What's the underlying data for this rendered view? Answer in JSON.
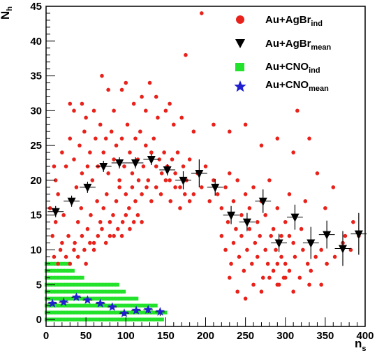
{
  "chart_data": {
    "type": "scatter",
    "title": "",
    "xlabel": {
      "main": "n",
      "sub": "s"
    },
    "ylabel": {
      "main": "N",
      "sub": "h"
    },
    "xlim": [
      0,
      400
    ],
    "ylim": [
      -1,
      45
    ],
    "xticks": [
      0,
      50,
      100,
      150,
      200,
      250,
      300,
      350,
      400
    ],
    "yticks": [
      0,
      5,
      10,
      15,
      20,
      25,
      30,
      35,
      40,
      45
    ],
    "legend_position": "top-right",
    "series": [
      {
        "name": "Au+AgBr",
        "name_sub": "ind",
        "marker": "circle",
        "color": "#e8221b",
        "points": [
          [
            195,
            44
          ],
          [
            175,
            38
          ],
          [
            70,
            35
          ],
          [
            100,
            34
          ],
          [
            130,
            34
          ],
          [
            78,
            33
          ],
          [
            95,
            33
          ],
          [
            120,
            32
          ],
          [
            138,
            32
          ],
          [
            150,
            30
          ],
          [
            155,
            31
          ],
          [
            315,
            30
          ],
          [
            30,
            31
          ],
          [
            35,
            30
          ],
          [
            45,
            31
          ],
          [
            50,
            29
          ],
          [
            60,
            30
          ],
          [
            85,
            30
          ],
          [
            110,
            31
          ],
          [
            125,
            30
          ],
          [
            140,
            29
          ],
          [
            160,
            28
          ],
          [
            170,
            29
          ],
          [
            185,
            27
          ],
          [
            210,
            28
          ],
          [
            230,
            27
          ],
          [
            250,
            28
          ],
          [
            270,
            25
          ],
          [
            290,
            26
          ],
          [
            310,
            24
          ],
          [
            330,
            26
          ],
          [
            10,
            22
          ],
          [
            12,
            20
          ],
          [
            15,
            18
          ],
          [
            20,
            24
          ],
          [
            25,
            22
          ],
          [
            30,
            26
          ],
          [
            35,
            23
          ],
          [
            38,
            19
          ],
          [
            42,
            25
          ],
          [
            45,
            21
          ],
          [
            48,
            27
          ],
          [
            52,
            22
          ],
          [
            55,
            24
          ],
          [
            58,
            20
          ],
          [
            62,
            26
          ],
          [
            65,
            22
          ],
          [
            68,
            28
          ],
          [
            72,
            24
          ],
          [
            75,
            26
          ],
          [
            78,
            21
          ],
          [
            82,
            27
          ],
          [
            85,
            23
          ],
          [
            88,
            25
          ],
          [
            92,
            20
          ],
          [
            95,
            26
          ],
          [
            98,
            22
          ],
          [
            102,
            28
          ],
          [
            105,
            24
          ],
          [
            108,
            21
          ],
          [
            112,
            26
          ],
          [
            115,
            23
          ],
          [
            118,
            27
          ],
          [
            122,
            22
          ],
          [
            125,
            25
          ],
          [
            128,
            20
          ],
          [
            132,
            24
          ],
          [
            135,
            26
          ],
          [
            138,
            22
          ],
          [
            142,
            23
          ],
          [
            145,
            21
          ],
          [
            148,
            24
          ],
          [
            152,
            22
          ],
          [
            155,
            20
          ],
          [
            158,
            23
          ],
          [
            162,
            21
          ],
          [
            165,
            24
          ],
          [
            168,
            19
          ],
          [
            172,
            22
          ],
          [
            176,
            20
          ],
          [
            180,
            23
          ],
          [
            185,
            18
          ],
          [
            190,
            21
          ],
          [
            195,
            19
          ],
          [
            200,
            22
          ],
          [
            205,
            17
          ],
          [
            210,
            20
          ],
          [
            215,
            18
          ],
          [
            220,
            16
          ],
          [
            225,
            19
          ],
          [
            230,
            21
          ],
          [
            235,
            17
          ],
          [
            240,
            20
          ],
          [
            245,
            15
          ],
          [
            250,
            18
          ],
          [
            255,
            16
          ],
          [
            260,
            19
          ],
          [
            265,
            14
          ],
          [
            270,
            17
          ],
          [
            275,
            15
          ],
          [
            280,
            20
          ],
          [
            285,
            13
          ],
          [
            290,
            16
          ],
          [
            295,
            12
          ],
          [
            300,
            14
          ],
          [
            305,
            18
          ],
          [
            310,
            11
          ],
          [
            320,
            13
          ],
          [
            325,
            17
          ],
          [
            340,
            21
          ],
          [
            350,
            16
          ],
          [
            360,
            19
          ],
          [
            375,
            12
          ],
          [
            385,
            14
          ],
          [
            5,
            16
          ],
          [
            8,
            12
          ],
          [
            12,
            14
          ],
          [
            18,
            10
          ],
          [
            22,
            15
          ],
          [
            28,
            12
          ],
          [
            32,
            17
          ],
          [
            36,
            11
          ],
          [
            40,
            14
          ],
          [
            44,
            16
          ],
          [
            48,
            10
          ],
          [
            52,
            13
          ],
          [
            56,
            15
          ],
          [
            60,
            11
          ],
          [
            64,
            17
          ],
          [
            68,
            14
          ],
          [
            72,
            16
          ],
          [
            76,
            18
          ],
          [
            80,
            12
          ],
          [
            84,
            15
          ],
          [
            88,
            17
          ],
          [
            92,
            19
          ],
          [
            96,
            14
          ],
          [
            100,
            18
          ],
          [
            104,
            16
          ],
          [
            108,
            19
          ],
          [
            112,
            17
          ],
          [
            116,
            20
          ],
          [
            120,
            18
          ],
          [
            126,
            19
          ],
          [
            132,
            17
          ],
          [
            138,
            19
          ],
          [
            144,
            18
          ],
          [
            150,
            20
          ],
          [
            156,
            17
          ],
          [
            162,
            19
          ],
          [
            168,
            16
          ],
          [
            174,
            18
          ],
          [
            180,
            17
          ],
          [
            10,
            9
          ],
          [
            15,
            8
          ],
          [
            20,
            11
          ],
          [
            25,
            9
          ],
          [
            30,
            8
          ],
          [
            35,
            10
          ],
          [
            40,
            9
          ],
          [
            45,
            12
          ],
          [
            50,
            8
          ],
          [
            55,
            11
          ],
          [
            60,
            10
          ],
          [
            65,
            12
          ],
          [
            70,
            13
          ],
          [
            75,
            11
          ],
          [
            80,
            14
          ],
          [
            85,
            12
          ],
          [
            90,
            13
          ],
          [
            95,
            12
          ],
          [
            100,
            15
          ],
          [
            105,
            13
          ],
          [
            110,
            14
          ],
          [
            115,
            15
          ],
          [
            120,
            14
          ],
          [
            220,
            12
          ],
          [
            225,
            10
          ],
          [
            228,
            14
          ],
          [
            232,
            8
          ],
          [
            235,
            11
          ],
          [
            238,
            13
          ],
          [
            242,
            9
          ],
          [
            245,
            12
          ],
          [
            248,
            7
          ],
          [
            252,
            10
          ],
          [
            255,
            13
          ],
          [
            258,
            8
          ],
          [
            262,
            11
          ],
          [
            265,
            9
          ],
          [
            268,
            12
          ],
          [
            272,
            6
          ],
          [
            275,
            10
          ],
          [
            278,
            8
          ],
          [
            282,
            12
          ],
          [
            285,
            7
          ],
          [
            288,
            10
          ],
          [
            292,
            5
          ],
          [
            295,
            9
          ],
          [
            298,
            6
          ],
          [
            300,
            8
          ],
          [
            305,
            7
          ],
          [
            312,
            9
          ],
          [
            318,
            6
          ],
          [
            322,
            10
          ],
          [
            328,
            8
          ],
          [
            332,
            7
          ],
          [
            338,
            9
          ],
          [
            345,
            10
          ],
          [
            352,
            8
          ],
          [
            362,
            9
          ],
          [
            372,
            11
          ],
          [
            382,
            10
          ],
          [
            392,
            12
          ],
          [
            230,
            6
          ],
          [
            240,
            4
          ],
          [
            250,
            3
          ],
          [
            260,
            5
          ],
          [
            270,
            4
          ],
          [
            280,
            6
          ],
          [
            290,
            5
          ],
          [
            300,
            6
          ],
          [
            310,
            4
          ],
          [
            330,
            5
          ],
          [
            345,
            5
          ],
          [
            290,
            8
          ],
          [
            305,
            12
          ]
        ],
        "mean_points": []
      },
      {
        "name": "Au+AgBr",
        "name_sub": "mean",
        "marker": "triangle-down",
        "color": "#000000",
        "points": [
          [
            12,
            15.5
          ],
          [
            32,
            17
          ],
          [
            52,
            19
          ],
          [
            72,
            22
          ],
          [
            92,
            22.5
          ],
          [
            112,
            22.5
          ],
          [
            132,
            23
          ],
          [
            152,
            21.5
          ],
          [
            172,
            20
          ],
          [
            192,
            21
          ],
          [
            212,
            19
          ],
          [
            232,
            15
          ],
          [
            252,
            14
          ],
          [
            272,
            17
          ],
          [
            292,
            11
          ],
          [
            312,
            14.7
          ],
          [
            332,
            11
          ],
          [
            352,
            12.2
          ],
          [
            372,
            10.2
          ],
          [
            392,
            12.3
          ]
        ],
        "err": [
          0.8,
          0.8,
          0.8,
          0.8,
          0.8,
          0.8,
          0.8,
          0.8,
          1.3,
          2,
          1.2,
          1.3,
          1.3,
          1.7,
          1.3,
          1.8,
          2.3,
          2,
          2.5,
          3
        ]
      },
      {
        "name": "Au+CNO",
        "name_sub": "ind",
        "marker": "square",
        "color": "#22e22b",
        "points": []
      },
      {
        "name": "Au+CNO",
        "name_sub": "mean",
        "marker": "star",
        "color": "#1f1fd1",
        "points": [
          [
            8,
            2.3
          ],
          [
            22,
            2.5
          ],
          [
            38,
            3.2
          ],
          [
            52,
            2.8
          ],
          [
            68,
            2.3
          ],
          [
            83,
            1.8
          ],
          [
            98,
            0.9
          ],
          [
            113,
            1.3
          ],
          [
            128,
            1.4
          ],
          [
            143,
            1.1
          ]
        ],
        "err": [
          0.3,
          0.3,
          0.3,
          0.3,
          0.3,
          0.3,
          0.4,
          0.4,
          0.5,
          0.6
        ]
      }
    ]
  }
}
